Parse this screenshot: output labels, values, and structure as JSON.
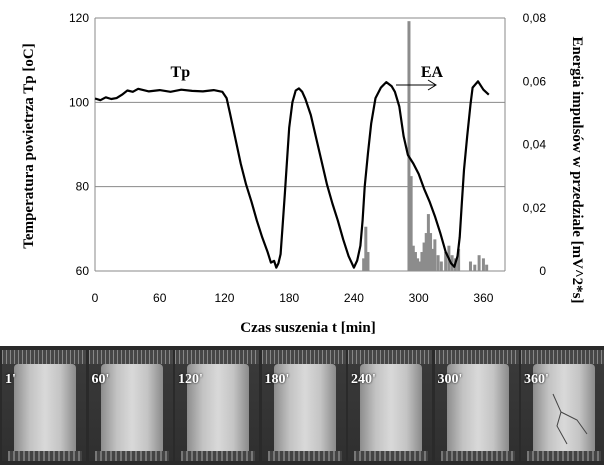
{
  "chart_data": {
    "type": "line",
    "xlabel": "Czas suszenia t [min]",
    "ylabel_left": "Temperatura powietrza Tp [oC]",
    "ylabel_right": "Energia impulsów w przedziale [mV^2*s]",
    "xlim": [
      0,
      380
    ],
    "ylim_left": [
      60,
      120
    ],
    "ylim_right": [
      0,
      0.08
    ],
    "x_ticks": [
      "0",
      "60",
      "120",
      "180",
      "240",
      "300",
      "360"
    ],
    "y_ticks_left": [
      "60",
      "80",
      "100",
      "120"
    ],
    "y_ticks_right": [
      "0",
      "0,02",
      "0,04",
      "0,06",
      "0,08"
    ],
    "grid": true,
    "annotations": [
      {
        "text": "Tp",
        "x": 70,
        "y": 106
      },
      {
        "text": "EA",
        "x": 302,
        "y": 106
      }
    ],
    "series": [
      {
        "name": "Tp",
        "axis": "left",
        "color": "#000000",
        "x": [
          0,
          5,
          10,
          15,
          20,
          25,
          30,
          35,
          40,
          50,
          60,
          70,
          80,
          90,
          100,
          110,
          118,
          122,
          125,
          130,
          135,
          140,
          145,
          150,
          155,
          160,
          163,
          166,
          168,
          170,
          172,
          174,
          176,
          178,
          180,
          183,
          186,
          189,
          192,
          195,
          200,
          205,
          210,
          215,
          220,
          225,
          230,
          235,
          240,
          243,
          246,
          248,
          250,
          253,
          256,
          260,
          265,
          270,
          275,
          278,
          282,
          286,
          290,
          295,
          300,
          305,
          310,
          315,
          320,
          325,
          330,
          333,
          336,
          338,
          340,
          342,
          345,
          348,
          350,
          355,
          360,
          365
        ],
        "y": [
          100.9,
          100.5,
          101.2,
          100.8,
          101.0,
          101.8,
          102.8,
          102.5,
          103.2,
          102.6,
          102.9,
          102.5,
          103.0,
          102.7,
          102.6,
          102.9,
          102.5,
          101.0,
          97.5,
          91.5,
          85.5,
          80.5,
          76.5,
          72.0,
          68.0,
          64.5,
          62.0,
          62.4,
          60.8,
          61.8,
          64.0,
          71.0,
          78.5,
          86.5,
          94.0,
          100.0,
          102.8,
          103.3,
          102.5,
          100.8,
          97.0,
          91.5,
          86.0,
          80.5,
          76.0,
          72.0,
          67.5,
          63.5,
          60.8,
          62.5,
          66.0,
          72.0,
          80.0,
          88.0,
          95.0,
          101.0,
          103.5,
          104.8,
          103.8,
          102.5,
          99.0,
          92.0,
          87.5,
          85.5,
          83.0,
          79.5,
          76.5,
          73.0,
          69.0,
          64.5,
          61.8,
          61.0,
          63.5,
          68.0,
          76.0,
          84.0,
          92.0,
          99.5,
          103.5,
          105.0,
          103.0,
          101.8
        ]
      },
      {
        "name": "EA",
        "axis": "right",
        "color": "#8c8c8c",
        "x": [
          249,
          251,
          253,
          291,
          293,
          295,
          297,
          299,
          301,
          303,
          305,
          307,
          309,
          311,
          313,
          315,
          318,
          321,
          325,
          328,
          331,
          334,
          337,
          348,
          352,
          356,
          360,
          363
        ],
        "y": [
          0.004,
          0.014,
          0.006,
          0.079,
          0.03,
          0.008,
          0.006,
          0.004,
          0.003,
          0.006,
          0.009,
          0.012,
          0.018,
          0.012,
          0.007,
          0.01,
          0.005,
          0.003,
          0.006,
          0.008,
          0.005,
          0.004,
          0.007,
          0.003,
          0.002,
          0.005,
          0.004,
          0.002
        ]
      }
    ]
  },
  "photos": {
    "labels": [
      "1'",
      "60'",
      "120'",
      "180'",
      "240'",
      "300'",
      "360'"
    ]
  }
}
